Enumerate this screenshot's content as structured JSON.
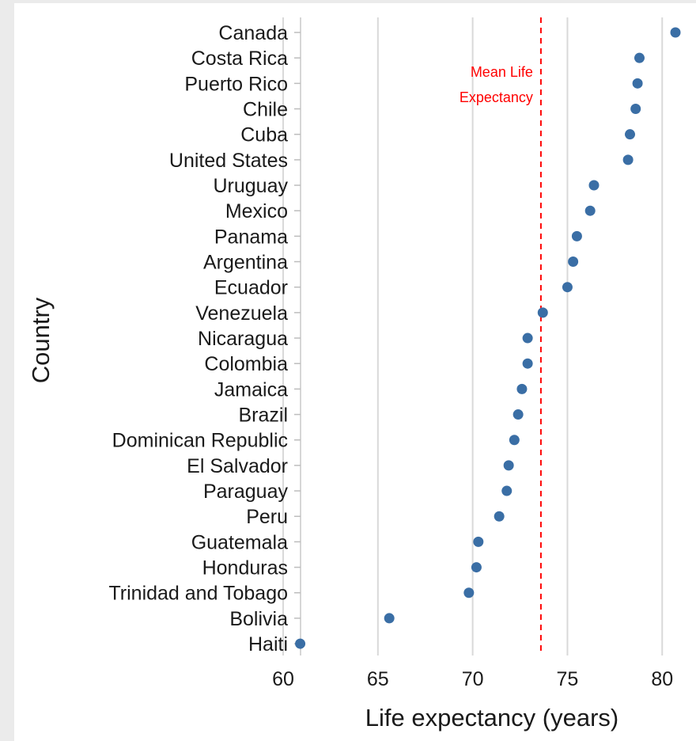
{
  "chart_data": {
    "type": "scatter",
    "xlabel": "Life expectancy (years)",
    "ylabel": "Country",
    "xlim": [
      60,
      81.2
    ],
    "xticks": [
      60,
      65,
      70,
      75,
      80
    ],
    "grid": "vertical",
    "categories": [
      "Canada",
      "Costa Rica",
      "Puerto Rico",
      "Chile",
      "Cuba",
      "United States",
      "Uruguay",
      "Mexico",
      "Panama",
      "Argentina",
      "Ecuador",
      "Venezuela",
      "Nicaragua",
      "Colombia",
      "Jamaica",
      "Brazil",
      "Dominican Republic",
      "El Salvador",
      "Paraguay",
      "Peru",
      "Guatemala",
      "Honduras",
      "Trinidad and Tobago",
      "Bolivia",
      "Haiti"
    ],
    "values": [
      80.7,
      78.8,
      78.7,
      78.6,
      78.3,
      78.2,
      76.4,
      76.2,
      75.5,
      75.3,
      75.0,
      73.7,
      72.9,
      72.9,
      72.6,
      72.4,
      72.2,
      71.9,
      71.8,
      71.4,
      70.3,
      70.2,
      69.8,
      65.6,
      60.9
    ],
    "reference_line": {
      "value": 73.6,
      "label_lines": [
        "Mean Life",
        "Expectancy"
      ],
      "color": "#ff0000",
      "style": "dashed"
    },
    "point_color": "#3a6ea5"
  }
}
